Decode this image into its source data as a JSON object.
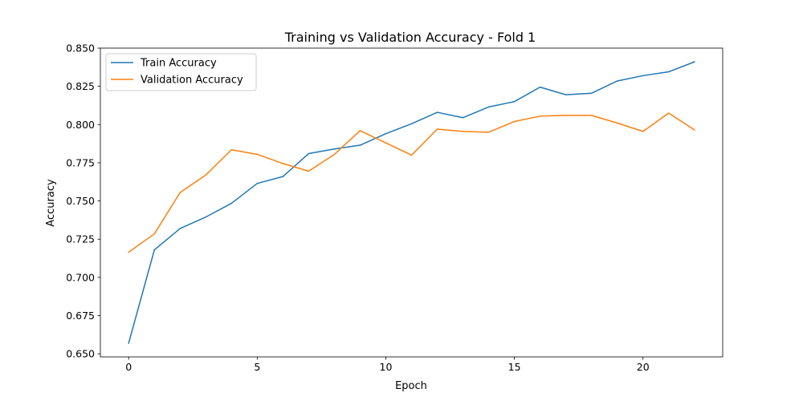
{
  "chart_data": {
    "type": "line",
    "title": "Training vs Validation Accuracy - Fold 1",
    "xlabel": "Epoch",
    "ylabel": "Accuracy",
    "xlim": [
      -1.1,
      23.1
    ],
    "ylim": [
      0.648,
      0.85
    ],
    "xticks": [
      0,
      5,
      10,
      15,
      20
    ],
    "yticks": [
      0.65,
      0.675,
      0.7,
      0.725,
      0.75,
      0.775,
      0.8,
      0.825,
      0.85
    ],
    "ytick_labels": [
      "0.650",
      "0.675",
      "0.700",
      "0.725",
      "0.750",
      "0.775",
      "0.800",
      "0.825",
      "0.850"
    ],
    "grid": false,
    "legend_position": "top-left",
    "x": [
      0,
      1,
      2,
      3,
      4,
      5,
      6,
      7,
      8,
      9,
      10,
      11,
      12,
      13,
      14,
      15,
      16,
      17,
      18,
      19,
      20,
      21,
      22
    ],
    "series": [
      {
        "name": "Train Accuracy",
        "color": "#1f77b4",
        "values": [
          0.657,
          0.718,
          0.732,
          0.7395,
          0.7485,
          0.7615,
          0.766,
          0.781,
          0.784,
          0.7865,
          0.794,
          0.8005,
          0.808,
          0.8045,
          0.8115,
          0.815,
          0.8245,
          0.8195,
          0.8205,
          0.8285,
          0.832,
          0.8345,
          0.841
        ]
      },
      {
        "name": "Validation Accuracy",
        "color": "#ff7f0e",
        "values": [
          0.7165,
          0.7285,
          0.7555,
          0.767,
          0.7835,
          0.7805,
          0.7745,
          0.7695,
          0.7805,
          0.796,
          0.788,
          0.78,
          0.797,
          0.7955,
          0.795,
          0.802,
          0.8055,
          0.806,
          0.806,
          0.801,
          0.7955,
          0.8075,
          0.7965
        ]
      }
    ]
  }
}
